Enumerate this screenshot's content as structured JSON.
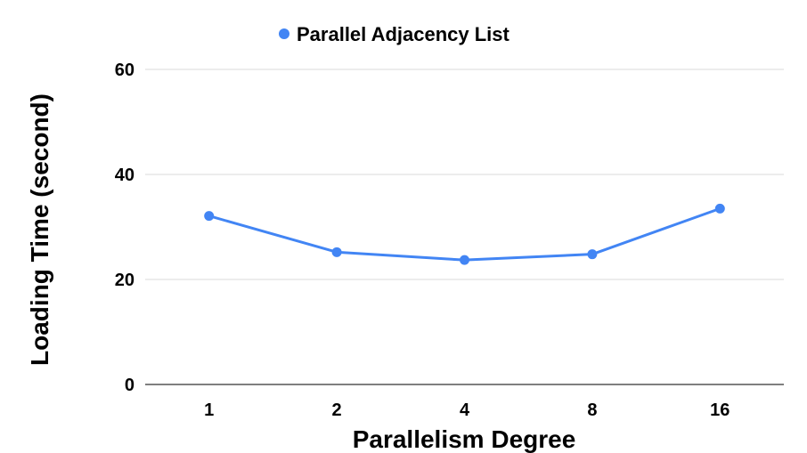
{
  "chart_data": {
    "type": "line",
    "categories": [
      "1",
      "2",
      "4",
      "8",
      "16"
    ],
    "series": [
      {
        "name": "Parallel Adjacency List",
        "values": [
          32.1,
          25.2,
          23.7,
          24.8,
          33.5
        ],
        "color": "#4285F4"
      }
    ],
    "xlabel": "Parallelism Degree",
    "ylabel": "Loading Time (second)",
    "ylim": [
      0,
      60
    ],
    "yticks": [
      0,
      20,
      40,
      60
    ],
    "grid": true,
    "legend_position": "top"
  }
}
